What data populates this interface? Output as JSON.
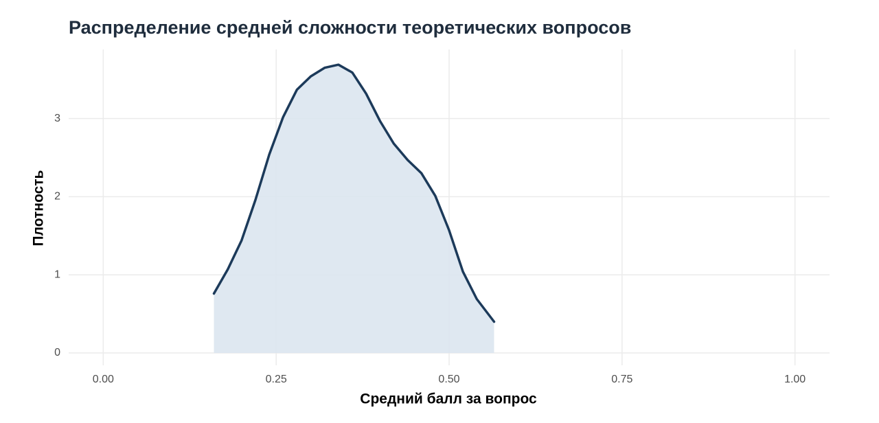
{
  "chart_data": {
    "type": "density",
    "title": "Распределение средней сложности теоретических вопросов",
    "x_label": "Средний балл за вопрос",
    "y_label": "Плотность",
    "x": [
      0.16,
      0.18,
      0.2,
      0.22,
      0.24,
      0.26,
      0.28,
      0.3,
      0.32,
      0.34,
      0.36,
      0.38,
      0.4,
      0.42,
      0.44,
      0.46,
      0.48,
      0.5,
      0.52,
      0.54,
      0.565
    ],
    "values": [
      0.76,
      1.07,
      1.44,
      1.96,
      2.54,
      3.02,
      3.37,
      3.54,
      3.65,
      3.69,
      3.59,
      3.32,
      2.97,
      2.68,
      2.47,
      2.3,
      2.01,
      1.57,
      1.04,
      0.69,
      0.4
    ],
    "line_color": "#1c3a5a",
    "fill_color": "#dce6f0",
    "xlim": [
      -0.05,
      1.05
    ],
    "xticks": [
      {
        "value": 0,
        "label": "0.00"
      },
      {
        "value": 0.25,
        "label": "0.25"
      },
      {
        "value": 0.5,
        "label": "0.50"
      },
      {
        "value": 0.75,
        "label": "0.75"
      },
      {
        "value": 1,
        "label": "1.00"
      }
    ],
    "ylim": [
      -0.185,
      3.885
    ],
    "yticks": [
      0,
      1,
      2,
      3
    ],
    "grid": true
  }
}
